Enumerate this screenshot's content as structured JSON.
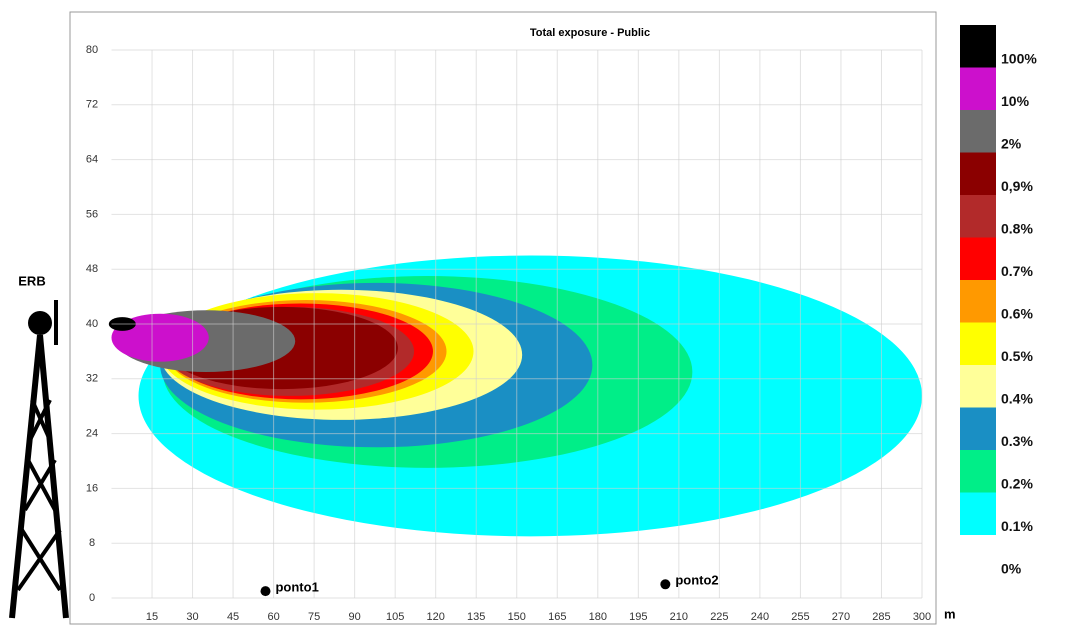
{
  "chart_data": {
    "type": "exposure-map",
    "title": "Total exposure - Public",
    "x_unit": "m",
    "antenna_label": "ERB",
    "xlim": [
      0,
      300
    ],
    "xticks": [
      15,
      30,
      45,
      60,
      75,
      90,
      105,
      120,
      135,
      150,
      165,
      180,
      195,
      210,
      225,
      240,
      255,
      270,
      285,
      300
    ],
    "ylim": [
      0,
      80
    ],
    "yticks": [
      0,
      8,
      16,
      24,
      32,
      40,
      48,
      56,
      64,
      72,
      80
    ],
    "grid": true,
    "levels": [
      {
        "label": "100%",
        "color": "#000000",
        "cx": 4,
        "cy": 40,
        "rx": 5,
        "ry": 1
      },
      {
        "label": "10%",
        "color": "#cc10cc",
        "cx": 18,
        "cy": 38,
        "rx": 18,
        "ry": 3.5
      },
      {
        "label": "2%",
        "color": "#6b6b6b",
        "cx": 35,
        "cy": 37.5,
        "rx": 33,
        "ry": 4.5
      },
      {
        "label": "0,9%",
        "color": "#8b0000",
        "cx": 63,
        "cy": 36.5,
        "rx": 43,
        "ry": 6
      },
      {
        "label": "0.8%",
        "color": "#b22a2a",
        "cx": 66,
        "cy": 36,
        "rx": 46,
        "ry": 6.5
      },
      {
        "label": "0.7%",
        "color": "#ff0000",
        "cx": 70,
        "cy": 36,
        "rx": 49,
        "ry": 7
      },
      {
        "label": "0.6%",
        "color": "#ff9900",
        "cx": 72,
        "cy": 36,
        "rx": 52,
        "ry": 7.5
      },
      {
        "label": "0.5%",
        "color": "#ffff00",
        "cx": 76,
        "cy": 36,
        "rx": 58,
        "ry": 8.5
      },
      {
        "label": "0.4%",
        "color": "#ffff99",
        "cx": 85,
        "cy": 35.5,
        "rx": 67,
        "ry": 9.5
      },
      {
        "label": "0.3%",
        "color": "#1a8fc4",
        "cx": 98,
        "cy": 34,
        "rx": 80,
        "ry": 12
      },
      {
        "label": "0.2%",
        "color": "#00ee88",
        "cx": 117,
        "cy": 33,
        "rx": 98,
        "ry": 14
      },
      {
        "label": "0.1%",
        "color": "#00ffff",
        "cx": 155,
        "cy": 29.5,
        "rx": 145,
        "ry": 20.5
      },
      {
        "label": "0%",
        "color": "#ffffff"
      }
    ],
    "points": [
      {
        "label": "ponto1",
        "x": 57,
        "y": 1
      },
      {
        "label": "ponto2",
        "x": 205,
        "y": 2
      }
    ]
  }
}
